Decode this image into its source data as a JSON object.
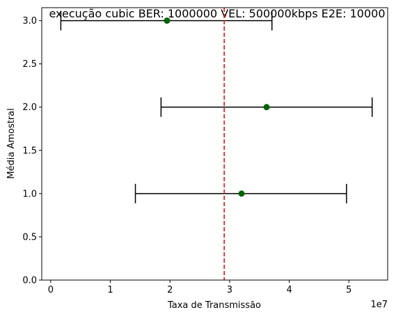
{
  "chart_data": {
    "type": "scatter",
    "title": "execução cubic BER: 1000000 VEL: 500000kbps E2E: 10000",
    "xlabel": "Taxa de Transmissão",
    "ylabel": "Média Amostral",
    "x_offset_label": "1e7",
    "xlim": [
      -1500000,
      56500000
    ],
    "ylim": [
      0.0,
      3.15
    ],
    "x_ticks": [
      0,
      10000000,
      20000000,
      30000000,
      40000000,
      50000000
    ],
    "x_tick_labels": [
      "0",
      "1",
      "2",
      "3",
      "4",
      "5"
    ],
    "y_ticks": [
      0.0,
      0.5,
      1.0,
      1.5,
      2.0,
      2.5,
      3.0
    ],
    "y_tick_labels": [
      "0.0",
      "0.5",
      "1.0",
      "1.5",
      "2.0",
      "2.5",
      "3.0"
    ],
    "points": [
      {
        "y": 1,
        "x": 32000000,
        "x_low": 14200000,
        "x_high": 49600000
      },
      {
        "y": 2,
        "x": 36200000,
        "x_low": 18500000,
        "x_high": 53900000
      },
      {
        "y": 3,
        "x": 19500000,
        "x_low": 1700000,
        "x_high": 37100000
      }
    ],
    "reference_line": {
      "x": 29100000,
      "style": "dashed",
      "color": "#d62728"
    },
    "point_color": "#006400",
    "errorbar_color": "#000000",
    "grid": false,
    "legend": "none"
  }
}
